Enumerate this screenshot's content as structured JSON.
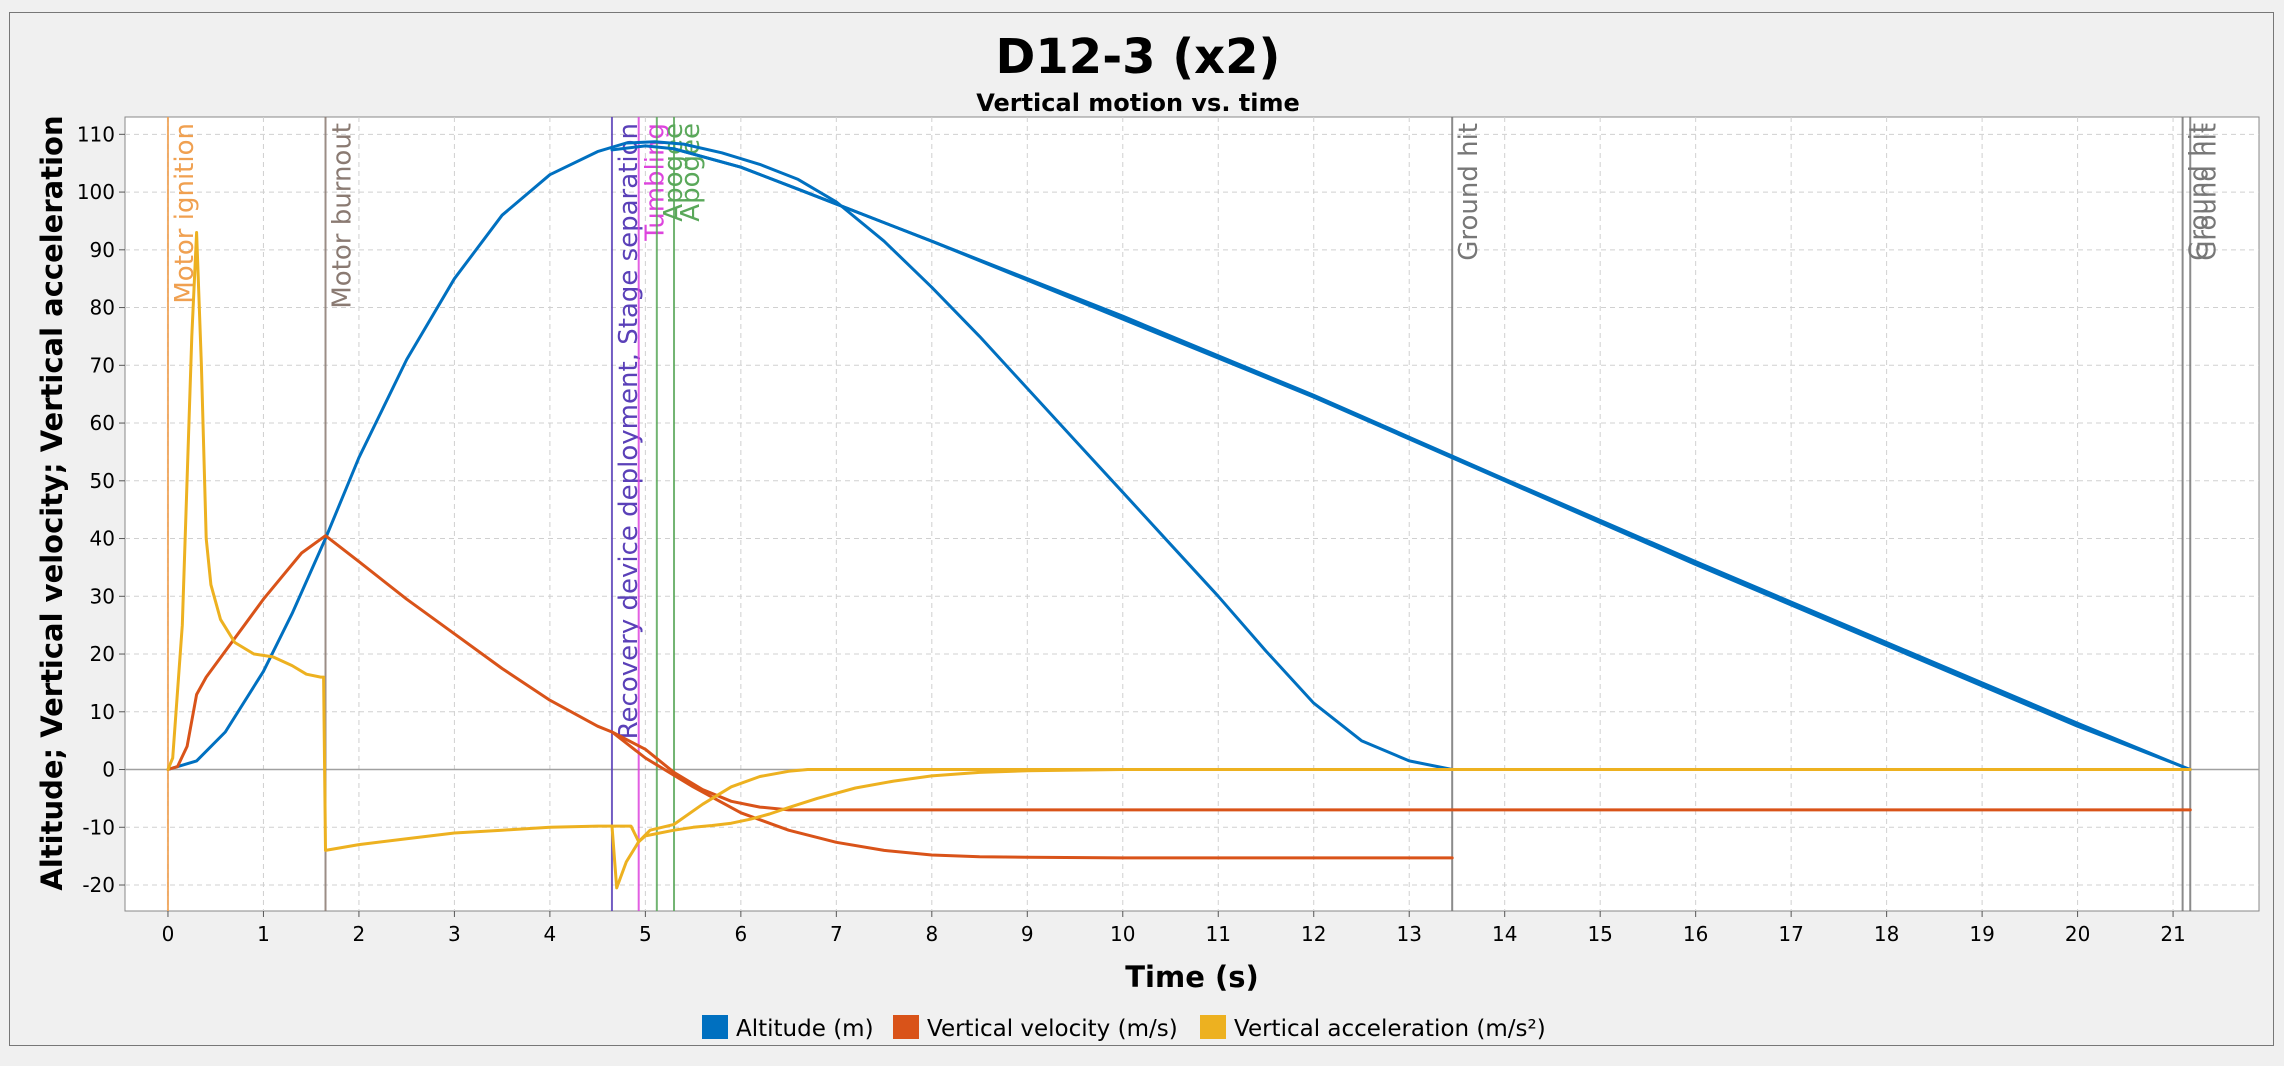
{
  "chart_data": {
    "type": "line",
    "title": "D12-3 (x2)",
    "subtitle": "Vertical motion vs. time",
    "xlabel": "Time (s)",
    "ylabel": "Altitude; Vertical velocity; Vertical acceleration",
    "xlim": [
      -0.45,
      21.9
    ],
    "ylim": [
      -24.5,
      113
    ],
    "xticks": [
      0,
      1,
      2,
      3,
      4,
      5,
      6,
      7,
      8,
      9,
      10,
      11,
      12,
      13,
      14,
      15,
      16,
      17,
      18,
      19,
      20,
      21
    ],
    "yticks": [
      -20,
      -10,
      0,
      10,
      20,
      30,
      40,
      50,
      60,
      70,
      80,
      90,
      100,
      110
    ],
    "grid": true,
    "legend_position": "bottom",
    "legend": [
      {
        "label": "Altitude (m)",
        "color": "#0070c0"
      },
      {
        "label": "Vertical velocity (m/s)",
        "color": "#d95319"
      },
      {
        "label": "Vertical acceleration (m/s²)",
        "color": "#edb120"
      }
    ],
    "events": [
      {
        "t": 0.0,
        "label": "Motor ignition",
        "color": "#f0a050"
      },
      {
        "t": 1.65,
        "label": "Motor burnout",
        "color": "#8a7a72"
      },
      {
        "t": 4.65,
        "label": "Recovery device deployment, Stage separation",
        "color": "#5a40b8"
      },
      {
        "t": 4.93,
        "label": "Tumbling",
        "color": "#dd44dd"
      },
      {
        "t": 5.12,
        "label": "Apogee",
        "color": "#5aa85a"
      },
      {
        "t": 5.3,
        "label": "Apogee",
        "color": "#5aa85a"
      },
      {
        "t": 13.45,
        "label": "Ground hit",
        "color": "#777777"
      },
      {
        "t": 21.1,
        "label": "Ground hit",
        "color": "#777777"
      },
      {
        "t": 21.18,
        "label": "Ground hit",
        "color": "#777777"
      }
    ],
    "series": [
      {
        "name": "Altitude (m)",
        "color": "#0070c0",
        "x": [
          0,
          0.3,
          0.6,
          1.0,
          1.3,
          1.65,
          2.0,
          2.5,
          3.0,
          3.5,
          4.0,
          4.5,
          4.8,
          5.1,
          5.4,
          5.8,
          6.2,
          6.6,
          7.0,
          7.5,
          8.0,
          8.5,
          9.0,
          9.5,
          10.0,
          10.5,
          11.0,
          11.5,
          12.0,
          12.5,
          13.0,
          13.45
        ],
        "y": [
          0,
          1.5,
          6.5,
          17,
          27,
          40,
          54,
          71,
          85,
          96,
          103,
          107,
          108.5,
          108.7,
          108.3,
          106.8,
          104.8,
          102.2,
          98.3,
          91.5,
          83.5,
          75,
          66,
          57,
          48,
          39,
          30,
          20.5,
          11.5,
          5,
          1.5,
          0
        ]
      },
      {
        "name": "Altitude (m)",
        "color": "#0070c0",
        "x": [
          4.65,
          5.0,
          5.3,
          6.0,
          6.6,
          8.0,
          10.0,
          12.0,
          14.0,
          16.0,
          18.0,
          20.0,
          21.18
        ],
        "y": [
          107.3,
          108.0,
          107.5,
          104.3,
          100.5,
          91.5,
          78,
          64.5,
          50,
          35.5,
          21.5,
          7.5,
          0
        ]
      },
      {
        "name": "Altitude (m)",
        "color": "#0070c0",
        "x": [
          5.3,
          6.0,
          6.6,
          8.0,
          10.0,
          12.0,
          14.0,
          16.0,
          18.0,
          20.0,
          21.1
        ],
        "y": [
          107.5,
          104.3,
          100.5,
          91.5,
          78.5,
          64.8,
          50.3,
          36,
          22,
          8,
          0.5
        ]
      },
      {
        "name": "Vertical velocity (m/s)",
        "color": "#d95319",
        "x": [
          0,
          0.1,
          0.2,
          0.3,
          0.4,
          0.6,
          0.8,
          1.0,
          1.2,
          1.4,
          1.65,
          2.0,
          2.5,
          3.0,
          3.5,
          4.0,
          4.5,
          4.65,
          5.0,
          5.5,
          6.0,
          6.5,
          7.0,
          7.5,
          8.0,
          8.5,
          9.0,
          10.0,
          11.0,
          12.0,
          13.0,
          13.45
        ],
        "y": [
          0,
          0.5,
          4,
          13,
          16,
          20.5,
          25,
          29.5,
          33.5,
          37.5,
          40.5,
          36,
          29.5,
          23.5,
          17.5,
          12,
          7.5,
          6.5,
          2,
          -3,
          -7.5,
          -10.5,
          -12.6,
          -14,
          -14.8,
          -15.1,
          -15.2,
          -15.3,
          -15.3,
          -15.3,
          -15.3,
          -15.3
        ]
      },
      {
        "name": "Vertical velocity (m/s)",
        "color": "#d95319",
        "x": [
          4.65,
          5.0,
          5.3,
          5.6,
          5.9,
          6.2,
          6.5,
          7.0,
          8.0,
          10.0,
          12.0,
          14.0,
          16.0,
          18.0,
          20.0,
          21.18
        ],
        "y": [
          6.5,
          3.5,
          -0.5,
          -3.5,
          -5.5,
          -6.5,
          -7,
          -7,
          -7,
          -7,
          -7,
          -7,
          -7,
          -7,
          -7,
          -7
        ]
      },
      {
        "name": "Vertical acceleration (m/s²)",
        "color": "#edb120",
        "x": [
          0,
          0.05,
          0.15,
          0.25,
          0.3,
          0.35,
          0.4,
          0.45,
          0.55,
          0.7,
          0.9,
          1.1,
          1.3,
          1.45,
          1.6,
          1.63,
          1.65,
          2.0,
          2.5,
          3.0,
          3.5,
          4.0,
          4.5,
          4.65,
          4.7,
          4.8,
          4.93,
          5.0,
          5.3,
          5.5,
          5.7,
          5.9,
          6.1,
          6.3,
          6.5,
          6.8,
          7.2,
          7.6,
          8.0,
          8.5,
          9.0,
          10.0,
          11.0,
          13.0,
          13.45
        ],
        "y": [
          0,
          2,
          25,
          75,
          93,
          70,
          40,
          32,
          26,
          22,
          20,
          19.5,
          18,
          16.5,
          16,
          16,
          -14,
          -13,
          -12,
          -11,
          -10.5,
          -10,
          -9.8,
          -9.8,
          -20.5,
          -16,
          -12.5,
          -11.5,
          -10.5,
          -10,
          -9.7,
          -9.3,
          -8.6,
          -7.7,
          -6.6,
          -5,
          -3.2,
          -2,
          -1.1,
          -0.5,
          -0.2,
          0,
          0,
          0,
          0
        ]
      },
      {
        "name": "Vertical acceleration (m/s²)",
        "color": "#edb120",
        "x": [
          4.65,
          4.85,
          4.93,
          5.05,
          5.3,
          5.6,
          5.9,
          6.2,
          6.5,
          6.7,
          8.0,
          10.0,
          12.0,
          14.0,
          16.0,
          18.0,
          20.0,
          21.18
        ],
        "y": [
          -9.8,
          -9.8,
          -12.5,
          -10.5,
          -9.5,
          -6,
          -3,
          -1.2,
          -0.3,
          0,
          0,
          0,
          0,
          0,
          0,
          0,
          0,
          0
        ]
      }
    ]
  }
}
